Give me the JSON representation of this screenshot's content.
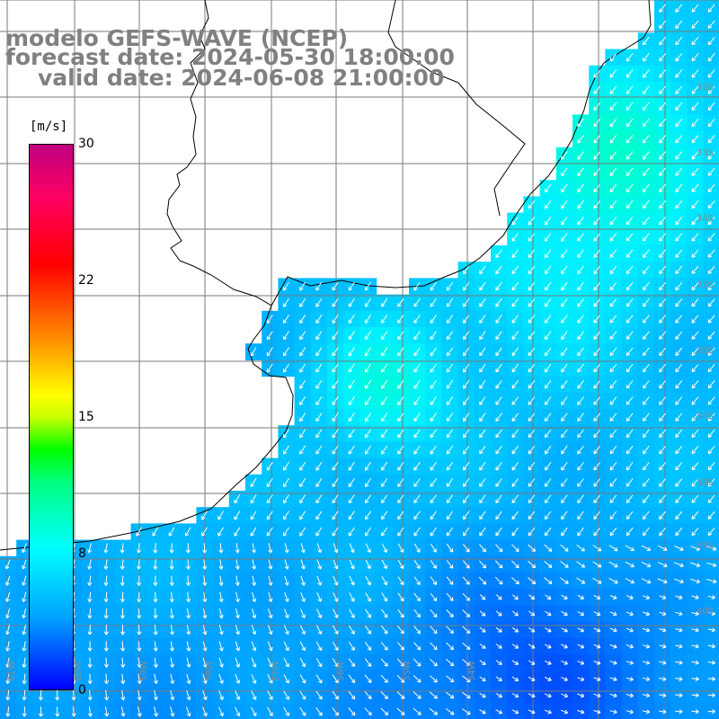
{
  "title": {
    "line1": "modelo GEFS-WAVE (NCEP)",
    "line2": "forecast date: 2024-05-30 18:00:00",
    "line3": "valid date: 2024-06-08 21:00:00"
  },
  "colorbar": {
    "unit": "[m/s]",
    "min": 0,
    "max": 30,
    "ticks": [
      "30",
      "22",
      "15",
      "8",
      "0"
    ],
    "tick_values": [
      30,
      22,
      15,
      8,
      0
    ]
  },
  "map": {
    "lat_labels": [
      "32S",
      "33S",
      "34S",
      "35S",
      "36S",
      "37S",
      "38S",
      "39S",
      "40S"
    ],
    "lon_labels": [
      "61W",
      "60W",
      "59W",
      "58W",
      "57W",
      "56W",
      "55W",
      "54W"
    ]
  }
}
